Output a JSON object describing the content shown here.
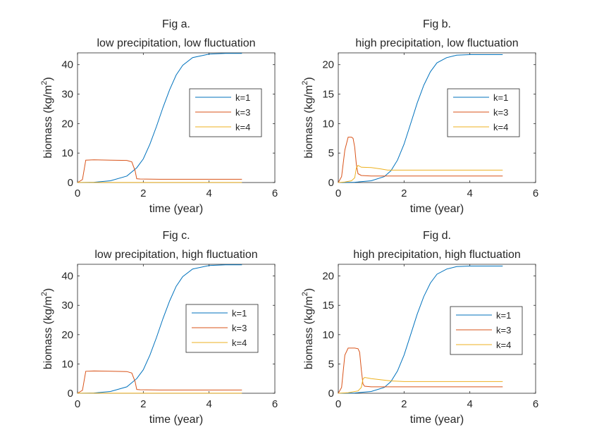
{
  "colors": {
    "k1": "#0072BD",
    "k3": "#D95319",
    "k4": "#EDB120",
    "axis": "#262626",
    "background": "#ffffff"
  },
  "chart_data": [
    {
      "type": "line",
      "title": "Fig a.",
      "subtitle": "low precipitation, low fluctuation",
      "xlabel": "time (year)",
      "ylabel": "biomass (kg/m",
      "ylabel_sup": "2",
      "ylabel_end": ")",
      "xlim": [
        0,
        6
      ],
      "ylim": [
        0,
        44
      ],
      "xticks": [
        0,
        2,
        4,
        6
      ],
      "yticks": [
        0,
        10,
        20,
        30,
        40
      ],
      "grid": false,
      "legend": "right",
      "series": [
        {
          "name": "k=1",
          "x": [
            0,
            0.5,
            1.0,
            1.5,
            1.8,
            2.0,
            2.2,
            2.4,
            2.6,
            2.8,
            3.0,
            3.2,
            3.5,
            4.0,
            4.5,
            5.0
          ],
          "y": [
            0,
            0.1,
            0.6,
            2.2,
            5.0,
            8.0,
            13.0,
            19.0,
            25.5,
            31.5,
            36.5,
            39.8,
            42.4,
            43.6,
            43.8,
            43.8
          ]
        },
        {
          "name": "k=3",
          "x": [
            0,
            0.15,
            0.25,
            0.5,
            1.0,
            1.5,
            1.65,
            1.75,
            1.8,
            1.9,
            2.5,
            5.0
          ],
          "y": [
            0,
            1.0,
            7.6,
            7.7,
            7.6,
            7.5,
            7.0,
            4.0,
            1.3,
            1.2,
            1.1,
            1.1
          ]
        },
        {
          "name": "k=4",
          "x": [
            0,
            2.0,
            5.0
          ],
          "y": [
            0.02,
            0.02,
            0.02
          ]
        }
      ]
    },
    {
      "type": "line",
      "title": "Fig b.",
      "subtitle": "high precipitation, low fluctuation",
      "xlabel": "time (year)",
      "ylabel": "biomass (kg/m",
      "ylabel_sup": "2",
      "ylabel_end": ")",
      "xlim": [
        0,
        6
      ],
      "ylim": [
        0,
        22
      ],
      "xticks": [
        0,
        2,
        4,
        6
      ],
      "yticks": [
        0,
        5,
        10,
        15,
        20
      ],
      "grid": false,
      "legend": "right",
      "series": [
        {
          "name": "k=1",
          "x": [
            0,
            0.5,
            1.0,
            1.4,
            1.6,
            1.8,
            2.0,
            2.2,
            2.4,
            2.6,
            2.8,
            3.0,
            3.3,
            3.6,
            4.0,
            4.5,
            5.0
          ],
          "y": [
            0,
            0.05,
            0.3,
            1.0,
            2.0,
            3.8,
            6.5,
            10.0,
            13.5,
            16.5,
            18.8,
            20.3,
            21.2,
            21.6,
            21.7,
            21.7,
            21.7
          ]
        },
        {
          "name": "k=3",
          "x": [
            0,
            0.1,
            0.2,
            0.3,
            0.4,
            0.45,
            0.5,
            0.55,
            0.6,
            0.7,
            1.0,
            5.0
          ],
          "y": [
            0,
            1.0,
            5.5,
            7.7,
            7.7,
            7.5,
            6.0,
            3.0,
            1.5,
            1.2,
            1.1,
            1.1
          ]
        },
        {
          "name": "k=4",
          "x": [
            0,
            0.2,
            0.4,
            0.5,
            0.55,
            0.6,
            0.7,
            1.0,
            1.3,
            1.5,
            2.0,
            5.0
          ],
          "y": [
            0,
            0.1,
            0.3,
            0.8,
            2.5,
            2.9,
            2.6,
            2.55,
            2.3,
            2.1,
            2.1,
            2.1
          ]
        }
      ]
    },
    {
      "type": "line",
      "title": "Fig c.",
      "subtitle": "low precipitation, high fluctuation",
      "xlabel": "time (year)",
      "ylabel": "biomass (kg/m",
      "ylabel_sup": "2",
      "ylabel_end": ")",
      "xlim": [
        0,
        6
      ],
      "ylim": [
        0,
        44
      ],
      "xticks": [
        0,
        2,
        4,
        6
      ],
      "yticks": [
        0,
        10,
        20,
        30,
        40
      ],
      "grid": false,
      "legend": "right",
      "series": [
        {
          "name": "k=1",
          "x": [
            0,
            0.5,
            1.0,
            1.5,
            1.8,
            2.0,
            2.2,
            2.4,
            2.6,
            2.8,
            3.0,
            3.2,
            3.5,
            4.0,
            4.5,
            5.0
          ],
          "y": [
            0,
            0.1,
            0.6,
            2.2,
            5.0,
            8.0,
            13.0,
            19.0,
            25.5,
            31.5,
            36.5,
            39.8,
            42.4,
            43.6,
            43.8,
            43.8
          ]
        },
        {
          "name": "k=3",
          "x": [
            0,
            0.15,
            0.25,
            0.5,
            1.0,
            1.5,
            1.65,
            1.75,
            1.8,
            1.9,
            2.5,
            5.0
          ],
          "y": [
            0,
            1.0,
            7.5,
            7.6,
            7.5,
            7.4,
            6.9,
            4.0,
            1.3,
            1.2,
            1.1,
            1.1
          ]
        },
        {
          "name": "k=4",
          "x": [
            0,
            2.0,
            5.0
          ],
          "y": [
            0.02,
            0.02,
            0.02
          ]
        }
      ]
    },
    {
      "type": "line",
      "title": "Fig d.",
      "subtitle": "high precipitation, high fluctuation",
      "xlabel": "time (year)",
      "ylabel": "biomass (kg/m",
      "ylabel_sup": "2",
      "ylabel_end": ")",
      "xlim": [
        0,
        6
      ],
      "ylim": [
        0,
        22
      ],
      "xticks": [
        0,
        2,
        4,
        6
      ],
      "yticks": [
        0,
        5,
        10,
        15,
        20
      ],
      "grid": false,
      "legend": "right",
      "series": [
        {
          "name": "k=1",
          "x": [
            0,
            0.5,
            1.0,
            1.4,
            1.6,
            1.8,
            2.0,
            2.2,
            2.4,
            2.6,
            2.8,
            3.0,
            3.3,
            3.6,
            4.0,
            4.5,
            5.0
          ],
          "y": [
            0,
            0.05,
            0.3,
            1.0,
            2.0,
            3.8,
            6.5,
            10.0,
            13.5,
            16.5,
            18.8,
            20.3,
            21.2,
            21.6,
            21.7,
            21.7,
            21.7
          ]
        },
        {
          "name": "k=3",
          "x": [
            0,
            0.1,
            0.2,
            0.3,
            0.5,
            0.6,
            0.65,
            0.7,
            0.75,
            0.8,
            1.0,
            5.0
          ],
          "y": [
            0,
            1.0,
            6.5,
            7.7,
            7.7,
            7.6,
            7.0,
            4.0,
            1.6,
            1.2,
            1.1,
            1.1
          ]
        },
        {
          "name": "k=4",
          "x": [
            0,
            0.3,
            0.6,
            0.7,
            0.75,
            0.8,
            1.0,
            1.3,
            1.6,
            2.0,
            5.0
          ],
          "y": [
            0,
            0.1,
            0.4,
            1.0,
            2.4,
            2.7,
            2.5,
            2.3,
            2.1,
            2.0,
            2.0
          ]
        }
      ]
    }
  ]
}
